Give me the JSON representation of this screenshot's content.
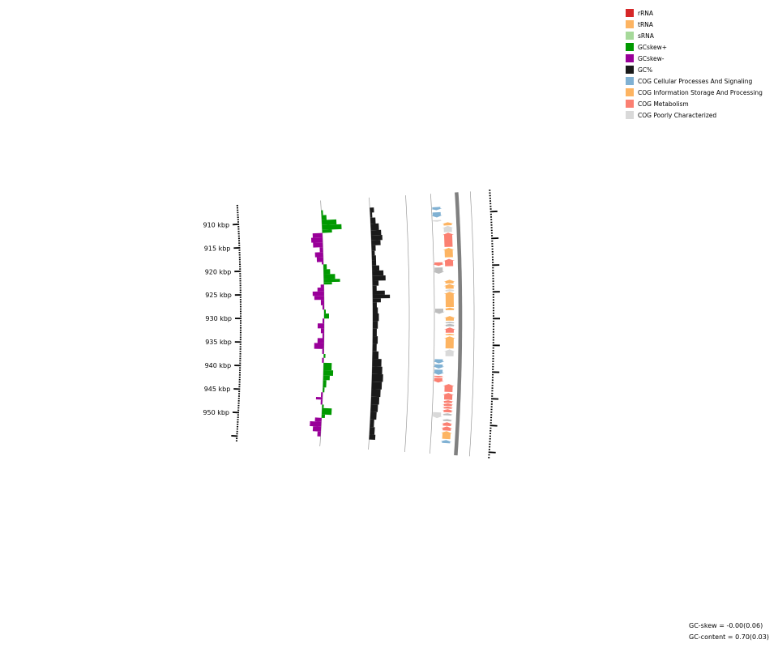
{
  "legend": [
    {
      "label": "rRNA",
      "color": "#d62728",
      "icon": "rrna-swatch"
    },
    {
      "label": "tRNA",
      "color": "#fdb462",
      "icon": "trna-swatch"
    },
    {
      "label": "sRNA",
      "color": "#a6d99a",
      "icon": "srna-swatch"
    },
    {
      "label": "GCskew+",
      "color": "#009900",
      "icon": "gcskew-plus-swatch"
    },
    {
      "label": "GCskew-",
      "color": "#990099",
      "icon": "gcskew-minus-swatch"
    },
    {
      "label": "GC%",
      "color": "#1a1a1a",
      "icon": "gc-content-swatch"
    },
    {
      "label": "COG Cellular Processes And Signaling",
      "color": "#80b1d3",
      "icon": "cog-cellular-swatch"
    },
    {
      "label": "COG Information Storage And Processing",
      "color": "#fdb462",
      "icon": "cog-information-swatch"
    },
    {
      "label": "COG Metabolism",
      "color": "#fb8072",
      "icon": "cog-metabolism-swatch"
    },
    {
      "label": "COG Poorly Characterized",
      "color": "#d9d9d9",
      "icon": "cog-poorly-swatch"
    }
  ],
  "stats": {
    "gc_skew": "GC-skew = -0.00(0.06)",
    "gc_content": "GC-content = 0.70(0.03)"
  },
  "axis": {
    "labels": [
      {
        "kbp": 910,
        "text": "910 kbp"
      },
      {
        "kbp": 915,
        "text": "915 kbp"
      },
      {
        "kbp": 920,
        "text": "920 kbp"
      },
      {
        "kbp": 925,
        "text": "925 kbp"
      },
      {
        "kbp": 930,
        "text": "930 kbp"
      },
      {
        "kbp": 935,
        "text": "935 kbp"
      },
      {
        "kbp": 940,
        "text": "940 kbp"
      },
      {
        "kbp": 945,
        "text": "945 kbp"
      },
      {
        "kbp": 950,
        "text": "950 kbp"
      }
    ]
  },
  "tracks": {
    "cog_colors": {
      "cellular": "#80b1d3",
      "information": "#fdb462",
      "metabolism": "#fb8072",
      "poorly": "#d9d9d9",
      "unknown": "#bdbdbd"
    },
    "genes_forward": [
      {
        "start": 908.6,
        "end": 909.2,
        "cog": "cellular",
        "dir": 1
      },
      {
        "start": 909.6,
        "end": 910.6,
        "cog": "cellular",
        "dir": 1
      },
      {
        "start": 911.1,
        "end": 911.4,
        "cog": "poorly",
        "dir": 1
      },
      {
        "start": 919.2,
        "end": 919.9,
        "cog": "metabolism",
        "dir": 1
      },
      {
        "start": 920.2,
        "end": 921.4,
        "cog": "unknown",
        "dir": 1
      },
      {
        "start": 928.1,
        "end": 929.1,
        "cog": "unknown",
        "dir": 1
      },
      {
        "start": 937.8,
        "end": 938.6,
        "cog": "cellular",
        "dir": 1
      },
      {
        "start": 938.8,
        "end": 939.6,
        "cog": "cellular",
        "dir": 1
      },
      {
        "start": 939.8,
        "end": 940.8,
        "cog": "cellular",
        "dir": 1
      },
      {
        "start": 941.0,
        "end": 941.3,
        "cog": "metabolism",
        "dir": 1
      },
      {
        "start": 941.4,
        "end": 942.3,
        "cog": "metabolism",
        "dir": 1
      },
      {
        "start": 948.0,
        "end": 949.1,
        "cog": "poorly",
        "dir": 1
      }
    ],
    "genes_reverse": [
      {
        "start": 911.6,
        "end": 912.2,
        "cog": "information",
        "dir": -1
      },
      {
        "start": 912.3,
        "end": 913.5,
        "cog": "poorly",
        "dir": -1
      },
      {
        "start": 913.6,
        "end": 916.3,
        "cog": "metabolism",
        "dir": -1
      },
      {
        "start": 916.5,
        "end": 918.3,
        "cog": "information",
        "dir": -1
      },
      {
        "start": 918.6,
        "end": 920.0,
        "cog": "metabolism",
        "dir": -1
      },
      {
        "start": 922.6,
        "end": 923.3,
        "cog": "information",
        "dir": -1
      },
      {
        "start": 923.4,
        "end": 924.3,
        "cog": "information",
        "dir": -1
      },
      {
        "start": 924.4,
        "end": 924.8,
        "cog": "poorly",
        "dir": -1
      },
      {
        "start": 924.9,
        "end": 927.8,
        "cog": "information",
        "dir": -1
      },
      {
        "start": 927.9,
        "end": 928.4,
        "cog": "information",
        "dir": -1
      },
      {
        "start": 929.5,
        "end": 930.4,
        "cog": "information",
        "dir": -1
      },
      {
        "start": 930.6,
        "end": 930.9,
        "cog": "unknown",
        "dir": -1
      },
      {
        "start": 931.0,
        "end": 931.5,
        "cog": "unknown",
        "dir": -1
      },
      {
        "start": 931.7,
        "end": 932.7,
        "cog": "metabolism",
        "dir": -1
      },
      {
        "start": 932.9,
        "end": 933.2,
        "cog": "information",
        "dir": -1
      },
      {
        "start": 933.4,
        "end": 935.7,
        "cog": "information",
        "dir": -1
      },
      {
        "start": 935.9,
        "end": 937.2,
        "cog": "poorly",
        "dir": -1
      },
      {
        "start": 942.5,
        "end": 944.0,
        "cog": "metabolism",
        "dir": -1
      },
      {
        "start": 944.2,
        "end": 945.5,
        "cog": "metabolism",
        "dir": -1
      },
      {
        "start": 945.6,
        "end": 946.1,
        "cog": "metabolism",
        "dir": -1
      },
      {
        "start": 946.2,
        "end": 946.7,
        "cog": "metabolism",
        "dir": -1
      },
      {
        "start": 946.8,
        "end": 947.2,
        "cog": "metabolism",
        "dir": -1
      },
      {
        "start": 947.3,
        "end": 947.9,
        "cog": "metabolism",
        "dir": -1
      },
      {
        "start": 948.1,
        "end": 948.5,
        "cog": "unknown",
        "dir": -1
      },
      {
        "start": 949.2,
        "end": 949.6,
        "cog": "unknown",
        "dir": -1
      },
      {
        "start": 949.8,
        "end": 950.5,
        "cog": "metabolism",
        "dir": -1
      },
      {
        "start": 950.6,
        "end": 951.4,
        "cog": "metabolism",
        "dir": -1
      },
      {
        "start": 951.5,
        "end": 953.0,
        "cog": "information",
        "dir": -1
      },
      {
        "start": 953.2,
        "end": 953.8,
        "cog": "cellular",
        "dir": -1
      }
    ],
    "gc_skew": [
      {
        "start": 908.0,
        "end": 909.0,
        "value": 0.05
      },
      {
        "start": 909.0,
        "end": 910.0,
        "value": 0.15
      },
      {
        "start": 910.0,
        "end": 911.0,
        "value": 0.45
      },
      {
        "start": 911.0,
        "end": 912.0,
        "value": 0.6
      },
      {
        "start": 912.0,
        "end": 912.6,
        "value": 0.3
      },
      {
        "start": 912.6,
        "end": 913.5,
        "value": -0.3
      },
      {
        "start": 913.5,
        "end": 914.5,
        "value": -0.35
      },
      {
        "start": 914.5,
        "end": 915.5,
        "value": -0.3
      },
      {
        "start": 915.5,
        "end": 916.5,
        "value": -0.1
      },
      {
        "start": 916.5,
        "end": 917.5,
        "value": -0.25
      },
      {
        "start": 917.5,
        "end": 918.5,
        "value": -0.2
      },
      {
        "start": 918.5,
        "end": 919.0,
        "value": -0.05
      },
      {
        "start": 919.0,
        "end": 920.0,
        "value": 0.1
      },
      {
        "start": 920.0,
        "end": 921.0,
        "value": 0.2
      },
      {
        "start": 921.0,
        "end": 922.0,
        "value": 0.35
      },
      {
        "start": 922.0,
        "end": 922.6,
        "value": 0.5
      },
      {
        "start": 922.6,
        "end": 923.1,
        "value": 0.25
      },
      {
        "start": 923.1,
        "end": 923.7,
        "value": -0.1
      },
      {
        "start": 923.7,
        "end": 924.5,
        "value": -0.2
      },
      {
        "start": 924.5,
        "end": 925.4,
        "value": -0.35
      },
      {
        "start": 925.4,
        "end": 926.2,
        "value": -0.3
      },
      {
        "start": 926.2,
        "end": 927.3,
        "value": -0.1
      },
      {
        "start": 927.3,
        "end": 928.2,
        "value": -0.05
      },
      {
        "start": 928.2,
        "end": 929.0,
        "value": 0.05
      },
      {
        "start": 929.0,
        "end": 930.0,
        "value": 0.15
      },
      {
        "start": 930.0,
        "end": 931.0,
        "value": -0.05
      },
      {
        "start": 931.0,
        "end": 932.0,
        "value": -0.2
      },
      {
        "start": 932.0,
        "end": 933.0,
        "value": -0.1
      },
      {
        "start": 933.0,
        "end": 934.0,
        "value": -0.05
      },
      {
        "start": 934.0,
        "end": 935.0,
        "value": -0.2
      },
      {
        "start": 935.0,
        "end": 936.2,
        "value": -0.3
      },
      {
        "start": 936.2,
        "end": 937.2,
        "value": -0.05
      },
      {
        "start": 937.2,
        "end": 938.0,
        "value": 0.05
      },
      {
        "start": 938.0,
        "end": 939.0,
        "value": -0.05
      },
      {
        "start": 939.0,
        "end": 940.5,
        "value": 0.25
      },
      {
        "start": 940.5,
        "end": 941.6,
        "value": 0.3
      },
      {
        "start": 941.6,
        "end": 942.5,
        "value": 0.2
      },
      {
        "start": 942.5,
        "end": 944.0,
        "value": 0.1
      },
      {
        "start": 944.0,
        "end": 945.0,
        "value": 0.05
      },
      {
        "start": 945.0,
        "end": 946.0,
        "value": -0.05
      },
      {
        "start": 946.0,
        "end": 946.5,
        "value": -0.2
      },
      {
        "start": 946.5,
        "end": 947.5,
        "value": -0.05
      },
      {
        "start": 947.5,
        "end": 948.2,
        "value": 0.05
      },
      {
        "start": 948.2,
        "end": 949.5,
        "value": 0.3
      },
      {
        "start": 949.5,
        "end": 950.2,
        "value": 0.1
      },
      {
        "start": 950.2,
        "end": 951.0,
        "value": -0.2
      },
      {
        "start": 951.0,
        "end": 952.0,
        "value": -0.35
      },
      {
        "start": 952.0,
        "end": 953.0,
        "value": -0.25
      },
      {
        "start": 953.0,
        "end": 954.0,
        "value": -0.1
      }
    ],
    "gc_content": [
      {
        "start": 908.0,
        "end": 909.0,
        "value": 0.2
      },
      {
        "start": 909.0,
        "end": 910.0,
        "value": 0.1
      },
      {
        "start": 910.0,
        "end": 911.2,
        "value": 0.25
      },
      {
        "start": 911.2,
        "end": 912.5,
        "value": 0.4
      },
      {
        "start": 912.5,
        "end": 913.5,
        "value": 0.5
      },
      {
        "start": 913.5,
        "end": 914.5,
        "value": 0.55
      },
      {
        "start": 914.5,
        "end": 915.5,
        "value": 0.45
      },
      {
        "start": 915.5,
        "end": 916.6,
        "value": 0.2
      },
      {
        "start": 916.6,
        "end": 917.5,
        "value": 0.15
      },
      {
        "start": 917.5,
        "end": 918.5,
        "value": 0.2
      },
      {
        "start": 918.5,
        "end": 919.5,
        "value": 0.2
      },
      {
        "start": 919.5,
        "end": 920.5,
        "value": 0.35
      },
      {
        "start": 920.5,
        "end": 921.5,
        "value": 0.55
      },
      {
        "start": 921.5,
        "end": 922.5,
        "value": 0.65
      },
      {
        "start": 922.5,
        "end": 923.5,
        "value": 0.3
      },
      {
        "start": 923.5,
        "end": 924.5,
        "value": 0.2
      },
      {
        "start": 924.5,
        "end": 925.3,
        "value": 0.6
      },
      {
        "start": 925.3,
        "end": 926.0,
        "value": 0.85
      },
      {
        "start": 926.0,
        "end": 926.8,
        "value": 0.4
      },
      {
        "start": 926.8,
        "end": 927.8,
        "value": 0.2
      },
      {
        "start": 927.8,
        "end": 929.0,
        "value": 0.25
      },
      {
        "start": 929.0,
        "end": 930.5,
        "value": 0.3
      },
      {
        "start": 930.5,
        "end": 932.0,
        "value": 0.25
      },
      {
        "start": 932.0,
        "end": 933.5,
        "value": 0.2
      },
      {
        "start": 933.5,
        "end": 935.0,
        "value": 0.25
      },
      {
        "start": 935.0,
        "end": 936.5,
        "value": 0.2
      },
      {
        "start": 936.5,
        "end": 938.0,
        "value": 0.3
      },
      {
        "start": 938.0,
        "end": 939.5,
        "value": 0.45
      },
      {
        "start": 939.5,
        "end": 941.0,
        "value": 0.5
      },
      {
        "start": 941.0,
        "end": 942.5,
        "value": 0.55
      },
      {
        "start": 942.5,
        "end": 944.0,
        "value": 0.5
      },
      {
        "start": 944.0,
        "end": 945.5,
        "value": 0.45
      },
      {
        "start": 945.5,
        "end": 947.0,
        "value": 0.4
      },
      {
        "start": 947.0,
        "end": 948.5,
        "value": 0.35
      },
      {
        "start": 948.5,
        "end": 950.0,
        "value": 0.3
      },
      {
        "start": 950.0,
        "end": 951.5,
        "value": 0.2
      },
      {
        "start": 951.5,
        "end": 953.0,
        "value": 0.25
      },
      {
        "start": 953.0,
        "end": 954.0,
        "value": 0.3
      }
    ]
  }
}
